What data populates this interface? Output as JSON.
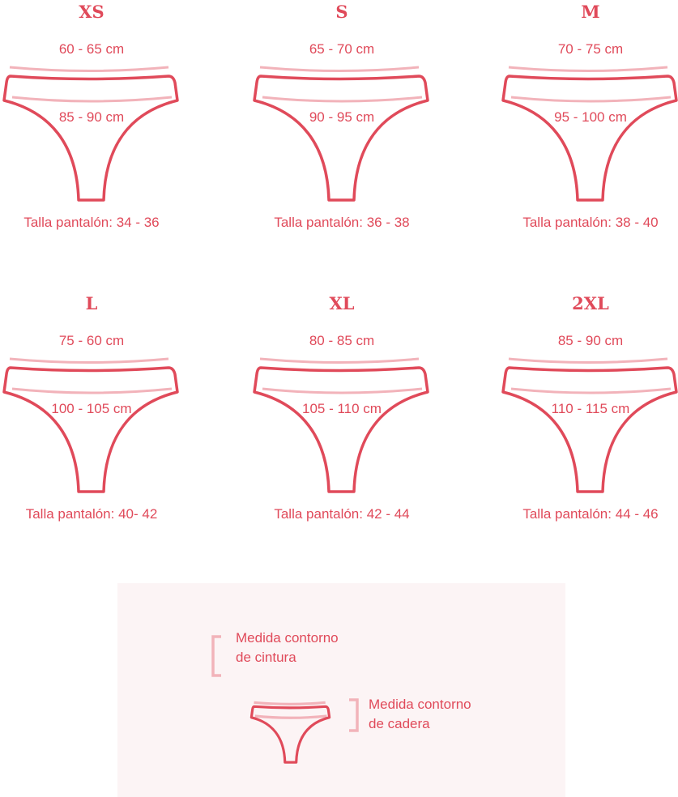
{
  "colors": {
    "outline": "#e04a5a",
    "measure_line": "#f2b3ba",
    "text": "#e04a5a",
    "legend_bg": "#fcf4f5"
  },
  "sizes": [
    {
      "size": "XS",
      "waist": "60 - 65 cm",
      "hip": "85 - 90 cm",
      "pants": "Talla pantalón: 34 - 36"
    },
    {
      "size": "S",
      "waist": "65 - 70 cm",
      "hip": "90 - 95 cm",
      "pants": "Talla pantalón: 36 - 38"
    },
    {
      "size": "M",
      "waist": "70 - 75 cm",
      "hip": "95 - 100 cm",
      "pants": "Talla pantalón: 38 - 40"
    },
    {
      "size": "L",
      "waist": "75 - 60 cm",
      "hip": "100 - 105 cm",
      "pants": "Talla pantalón: 40- 42"
    },
    {
      "size": "XL",
      "waist": "80 - 85 cm",
      "hip": "105 - 110 cm",
      "pants": "Talla pantalón: 42 - 44"
    },
    {
      "size": "2XL",
      "waist": "85 - 90 cm",
      "hip": "110 - 115 cm",
      "pants": "Talla pantalón: 44 - 46"
    }
  ],
  "legend": {
    "waist_line1": "Medida contorno",
    "waist_line2": "de cintura",
    "hip_line1": "Medida contorno",
    "hip_line2": "de cadera"
  }
}
